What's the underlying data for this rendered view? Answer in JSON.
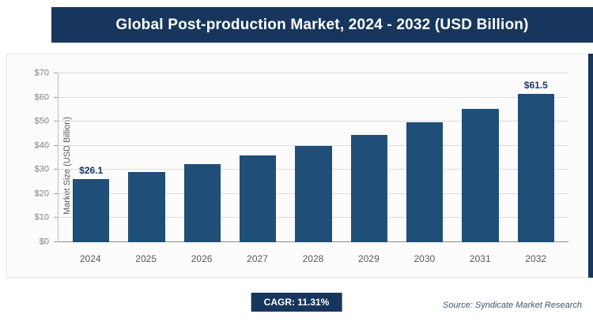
{
  "chart_data": {
    "type": "bar",
    "title": "Global Post-production Market, 2024 - 2032 (USD Billion)",
    "categories": [
      "2024",
      "2025",
      "2026",
      "2027",
      "2028",
      "2029",
      "2030",
      "2031",
      "2032"
    ],
    "values": [
      26.1,
      29.0,
      32.3,
      36.0,
      40.0,
      44.5,
      49.6,
      55.2,
      61.5
    ],
    "bar_labels": [
      "$26.1",
      "",
      "",
      "",
      "",
      "",
      "",
      "",
      "$61.5"
    ],
    "xlabel": "",
    "ylabel": "Market Size (USD Billion)",
    "ylim": [
      0,
      70
    ],
    "ytick_step": 10,
    "ytick_prefix": "$",
    "grid": true,
    "legend": "none",
    "bar_color": "#1f4e79"
  },
  "footer": {
    "cagr_label": "CAGR: 11.31%",
    "source": "Source: Syndicate Market Research"
  },
  "colors": {
    "title_bar_bg": "#17365d",
    "bar_fill": "#1f4e79",
    "badge_bg": "#17365d",
    "value_label": "#1f3864",
    "gridline": "#dcdcdc"
  }
}
